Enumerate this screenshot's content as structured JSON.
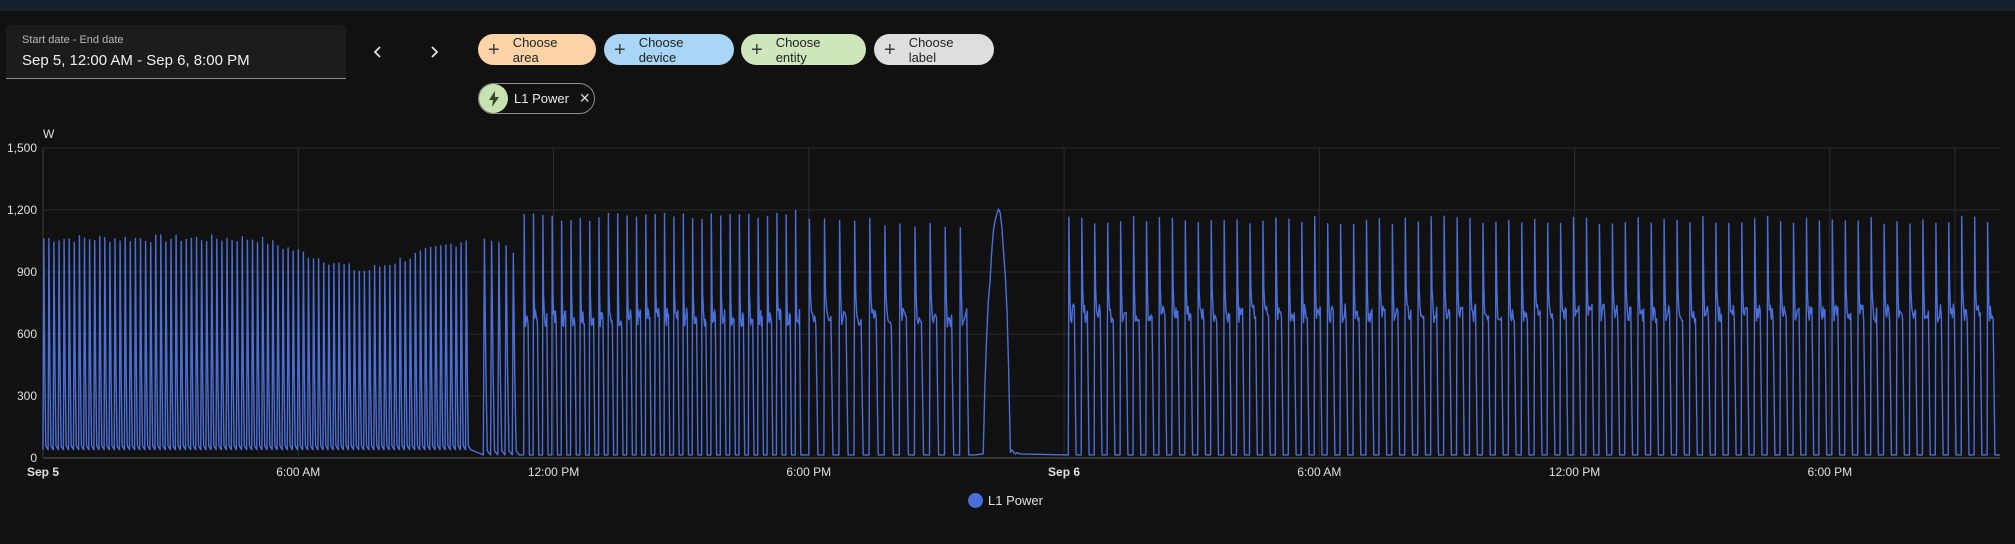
{
  "date_picker": {
    "label": "Start date - End date",
    "value": "Sep 5, 12:00 AM - Sep 6, 8:00 PM"
  },
  "filters": {
    "area": "Choose area",
    "device": "Choose device",
    "entity": "Choose entity",
    "label": "Choose label"
  },
  "selected_entity": {
    "name": "L1 Power",
    "icon": "flash-icon",
    "close_icon": "close-icon"
  },
  "colors": {
    "area_chip": "#fdd3a8",
    "device_chip": "#a9d6f7",
    "entity_chip": "#cfe6bd",
    "label_chip": "#dedede",
    "series": "#4b6fd8"
  },
  "chart_data": {
    "type": "line",
    "ylabel": "W",
    "ylim": [
      0,
      1500
    ],
    "yticks": [
      "0",
      "300",
      "600",
      "900",
      "1,200",
      "1,500"
    ],
    "xlim_hours": [
      0,
      46
    ],
    "xticks": [
      {
        "hour": 0,
        "label": "Sep 5",
        "bold": true
      },
      {
        "hour": 6,
        "label": "6:00 AM",
        "bold": false
      },
      {
        "hour": 12,
        "label": "12:00 PM",
        "bold": false
      },
      {
        "hour": 18,
        "label": "6:00 PM",
        "bold": false
      },
      {
        "hour": 24,
        "label": "Sep 6",
        "bold": true
      },
      {
        "hour": 30,
        "label": "6:00 AM",
        "bold": false
      },
      {
        "hour": 36,
        "label": "12:00 PM",
        "bold": false
      },
      {
        "hour": 42,
        "label": "6:00 PM",
        "bold": false
      }
    ],
    "grid": true,
    "legend": "bottom-center",
    "series": [
      {
        "name": "L1 Power",
        "pulse_groups": [
          {
            "start": 0.0,
            "end": 10.05,
            "pulses": 84,
            "peak_start": 1060,
            "peak_end": 1060,
            "dip_peak": 900,
            "dip_at": 7.5,
            "floor": 40,
            "shape": "spike"
          },
          {
            "start": 10.35,
            "end": 11.2,
            "pulses": 5,
            "peak_start": 1070,
            "peak_end": 1000,
            "floor": 15,
            "shape": "spike"
          },
          {
            "start": 11.3,
            "end": 17.9,
            "pulses": 30,
            "peak_start": 1160,
            "peak_end": 1180,
            "plateau": 680,
            "floor": 15,
            "shape": "plateau"
          },
          {
            "start": 18.0,
            "end": 21.9,
            "pulses": 11,
            "peak_start": 1150,
            "peak_end": 1130,
            "plateau": 680,
            "floor": 15,
            "shape": "plateau"
          },
          {
            "start": 24.1,
            "end": 46.0,
            "pulses": 72,
            "peak_start": 1150,
            "peak_end": 1150,
            "plateau": 700,
            "floor": 15,
            "shape": "plateau"
          }
        ],
        "events": [
          {
            "start": 22.1,
            "end": 22.9,
            "peak": 1370,
            "shape": "hump"
          }
        ]
      }
    ]
  }
}
